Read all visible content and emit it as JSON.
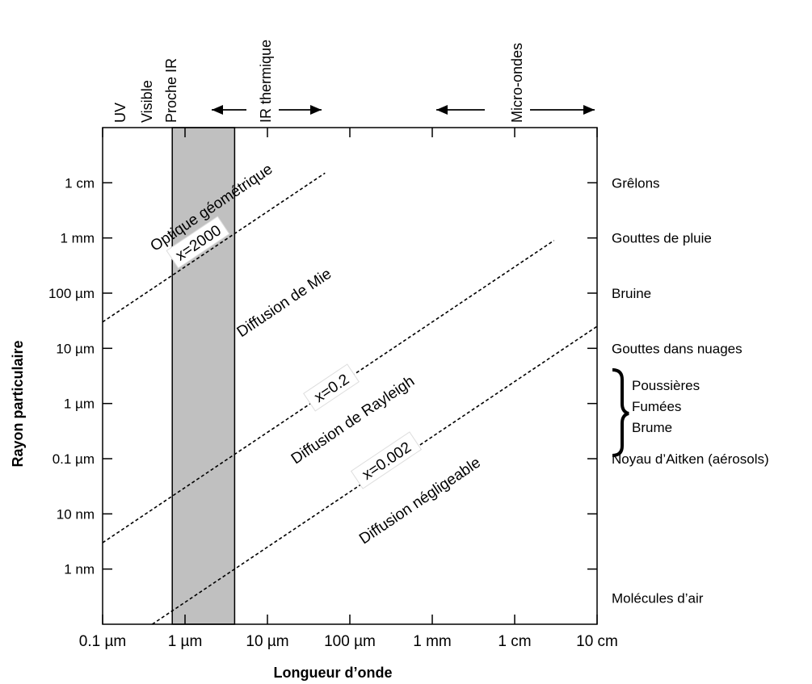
{
  "chart_data": {
    "type": "line",
    "xlabel": "Longueur d’onde",
    "ylabel": "Rayon particulaire",
    "x_scale": "log",
    "y_scale": "log",
    "x_ticks": [
      "0.1 µm",
      "1 µm",
      "10 µm",
      "100 µm",
      "1 mm",
      "1 cm",
      "10 cm"
    ],
    "y_ticks": [
      "1 nm",
      "10 nm",
      "0.1 µm",
      "1 µm",
      "10 µm",
      "100 µm",
      "1 mm",
      "1 cm"
    ],
    "xlim_um": [
      0.1,
      100000
    ],
    "ylim_um": [
      0.0001,
      100000
    ],
    "shaded_band": {
      "label": "Proche IR",
      "from_um": 0.7,
      "to_um": 4
    },
    "top_bands": [
      {
        "label": "UV",
        "arrows": false
      },
      {
        "label": "Visible",
        "arrows": false
      },
      {
        "label": "Proche IR",
        "arrows": false
      },
      {
        "label": "IR thermique",
        "arrows": true
      },
      {
        "label": "Micro-ondes",
        "arrows": true
      }
    ],
    "series": [
      {
        "name": "x=2000",
        "x_um": [
          0.1,
          50
        ],
        "y_um": [
          30,
          15000
        ]
      },
      {
        "name": "x=0.2",
        "x_um": [
          0.1,
          30000
        ],
        "y_um": [
          0.003,
          900
        ]
      },
      {
        "name": "x=0.002",
        "x_um": [
          0.4,
          100000
        ],
        "y_um": [
          0.0001,
          25
        ]
      }
    ],
    "series_labels": [
      "x=2000",
      "x=0.2",
      "x=0.002"
    ],
    "regions": [
      "Optique géométrique",
      "Diffusion de Mie",
      "Diffusion de Rayleigh",
      "Diffusion négligeable"
    ],
    "right_labels": [
      {
        "text": "Grêlons",
        "y_um": 10000
      },
      {
        "text": "Gouttes de pluie",
        "y_um": 1000
      },
      {
        "text": "Bruine",
        "y_um": 100
      },
      {
        "text": "Gouttes dans nuages",
        "y_um": 10
      },
      {
        "text": "Noyau d’Aitken  (aérosols)",
        "y_um": 0.1
      },
      {
        "text": "Molécules d’air",
        "y_um": 0.0003
      }
    ],
    "bracket_labels": [
      "Poussières",
      "Fumées",
      "Brume"
    ],
    "grid": false
  }
}
